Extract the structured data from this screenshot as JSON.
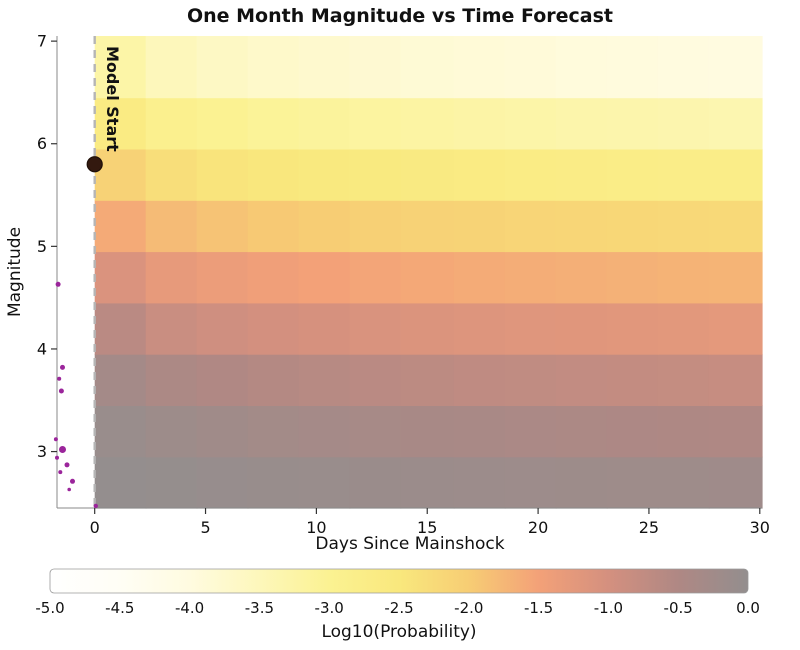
{
  "chart_data": {
    "type": "heatmap",
    "title": "One Month Magnitude vs Time Forecast",
    "xlabel": "Days Since Mainshock",
    "ylabel": "Magnitude",
    "x_range": [
      -1.7,
      30.1
    ],
    "y_range": [
      2.45,
      7.05
    ],
    "x_ticks": [
      0,
      5,
      10,
      15,
      20,
      25,
      30
    ],
    "x_tick_labels": [
      "0",
      "5",
      "10",
      "15",
      "20",
      "25",
      "30"
    ],
    "y_ticks": [
      3,
      4,
      5,
      6,
      7
    ],
    "y_tick_labels": [
      "3",
      "4",
      "5",
      "6",
      "7"
    ],
    "x_edges": [
      0,
      2.3,
      4.6,
      6.9,
      9.2,
      11.5,
      13.8,
      16.2,
      18.5,
      20.8,
      23.1,
      25.4,
      27.7,
      30.1
    ],
    "y_edges": [
      2.45,
      2.95,
      3.45,
      3.95,
      4.45,
      4.95,
      5.45,
      5.95,
      6.45,
      7.05
    ],
    "values_note": "log10 probability per magnitude-time bin; rows ordered bottom (low magnitude) to top (high magnitude)",
    "values": [
      [
        -0.01,
        -0.04,
        -0.07,
        -0.09,
        -0.11,
        -0.13,
        -0.15,
        -0.16,
        -0.17,
        -0.18,
        -0.19,
        -0.2,
        -0.21
      ],
      [
        -0.1,
        -0.18,
        -0.24,
        -0.28,
        -0.32,
        -0.35,
        -0.38,
        -0.4,
        -0.42,
        -0.44,
        -0.46,
        -0.48,
        -0.5
      ],
      [
        -0.3,
        -0.45,
        -0.52,
        -0.57,
        -0.61,
        -0.65,
        -0.68,
        -0.71,
        -0.73,
        -0.75,
        -0.77,
        -0.79,
        -0.81
      ],
      [
        -0.65,
        -0.85,
        -0.93,
        -0.99,
        -1.04,
        -1.08,
        -1.11,
        -1.14,
        -1.17,
        -1.19,
        -1.21,
        -1.23,
        -1.25
      ],
      [
        -1.1,
        -1.3,
        -1.39,
        -1.45,
        -1.5,
        -1.54,
        -1.58,
        -1.61,
        -1.64,
        -1.66,
        -1.68,
        -1.7,
        -1.72
      ],
      [
        -1.6,
        -1.8,
        -1.89,
        -1.95,
        -2.0,
        -2.05,
        -2.09,
        -2.12,
        -2.15,
        -2.17,
        -2.19,
        -2.21,
        -2.23
      ],
      [
        -2.1,
        -2.32,
        -2.42,
        -2.48,
        -2.54,
        -2.58,
        -2.62,
        -2.65,
        -2.68,
        -2.71,
        -2.73,
        -2.75,
        -2.77
      ],
      [
        -2.65,
        -2.9,
        -3.0,
        -3.07,
        -3.12,
        -3.17,
        -3.21,
        -3.24,
        -3.27,
        -3.3,
        -3.32,
        -3.34,
        -3.36
      ],
      [
        -3.25,
        -3.5,
        -3.62,
        -3.7,
        -3.76,
        -3.81,
        -3.85,
        -3.88,
        -3.91,
        -3.94,
        -3.96,
        -3.98,
        -4.0
      ]
    ],
    "colormap": [
      {
        "value": -5.0,
        "color": "#ffffff"
      },
      {
        "value": -4.5,
        "color": "#fffef5"
      },
      {
        "value": -4.0,
        "color": "#fffbe0"
      },
      {
        "value": -3.5,
        "color": "#fdf7bb"
      },
      {
        "value": -3.0,
        "color": "#fbf292"
      },
      {
        "value": -2.5,
        "color": "#f9e87d"
      },
      {
        "value": -2.0,
        "color": "#f7cd74"
      },
      {
        "value": -1.5,
        "color": "#f3a178"
      },
      {
        "value": -1.0,
        "color": "#d4907f"
      },
      {
        "value": -0.5,
        "color": "#af8884"
      },
      {
        "value": 0.0,
        "color": "#938e8e"
      }
    ],
    "colorbar": {
      "label": "Log10(Probability)",
      "ticks": [
        -5.0,
        -4.5,
        -4.0,
        -3.5,
        -3.0,
        -2.5,
        -2.0,
        -1.5,
        -1.0,
        -0.5,
        0.0
      ],
      "tick_labels": [
        "-5.0",
        "-4.5",
        "-4.0",
        "-3.5",
        "-3.0",
        "-2.5",
        "-2.0",
        "-1.5",
        "-1.0",
        "-0.5",
        "0.0"
      ]
    },
    "model_start": {
      "label": "Model Start",
      "x": 0,
      "line_color": "#b5b5b5"
    },
    "mainshock": {
      "x": 0.0,
      "y": 5.8,
      "color": "#33190f",
      "edge_color": "#1f0f08"
    },
    "event_color": "#9b259b",
    "events": [
      {
        "x": -1.65,
        "y": 4.63,
        "r": 2.5
      },
      {
        "x": -1.45,
        "y": 3.82,
        "r": 2.5
      },
      {
        "x": -1.6,
        "y": 3.71,
        "r": 2.0
      },
      {
        "x": -1.5,
        "y": 3.59,
        "r": 2.5
      },
      {
        "x": -1.75,
        "y": 3.12,
        "r": 2.0
      },
      {
        "x": -1.45,
        "y": 3.02,
        "r": 3.5
      },
      {
        "x": -1.7,
        "y": 2.94,
        "r": 2.0
      },
      {
        "x": -1.25,
        "y": 2.87,
        "r": 2.5
      },
      {
        "x": -1.55,
        "y": 2.8,
        "r": 2.0
      },
      {
        "x": -1.15,
        "y": 2.63,
        "r": 1.8
      },
      {
        "x": -1.0,
        "y": 2.71,
        "r": 2.5
      },
      {
        "x": 0.05,
        "y": 2.47,
        "r": 2.2
      }
    ],
    "legend_position": "bottom-colorbar",
    "grid": false
  }
}
